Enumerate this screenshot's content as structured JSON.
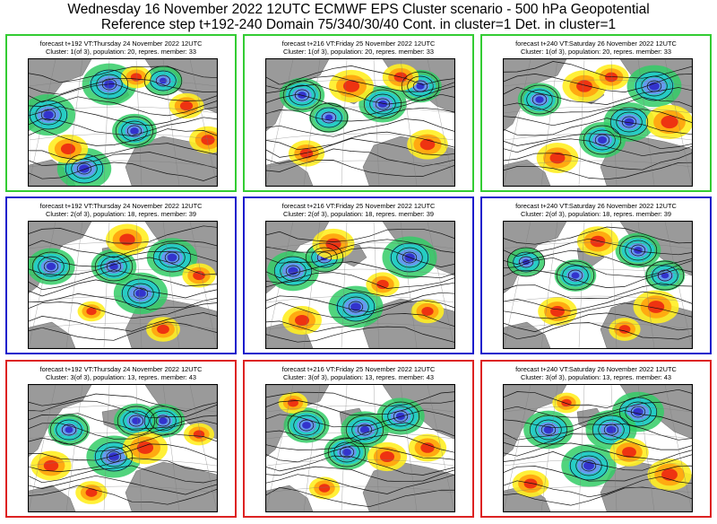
{
  "title": "Wednesday 16 November 2022 12UTC ECMWF EPS Cluster scenario - 500 hPa Geopotential",
  "subtitle": "Reference step t+192-240 Domain 75/340/30/40 Cont. in cluster=1 Det. in cluster=1",
  "colors": {
    "cluster1": "#33cc33",
    "cluster2": "#1a1acc",
    "cluster3": "#dd2222",
    "land": "#9a9a9a",
    "ocean": "#ffffff",
    "contour": "#111111"
  },
  "panels": [
    {
      "forecast": "forecast t+192 VT:Thursday 24 November 2022 12UTC",
      "cluster": "Cluster: 1(of 3), population: 20, repres. member: 33"
    },
    {
      "forecast": "forecast t+216 VT:Friday 25 November 2022 12UTC",
      "cluster": "Cluster: 1(of 3), population: 20, repres. member: 33"
    },
    {
      "forecast": "forecast t+240 VT:Saturday 26 November 2022 12UTC",
      "cluster": "Cluster: 1(of 3), population: 20, repres. member: 33"
    },
    {
      "forecast": "forecast t+192 VT:Thursday 24 November 2022 12UTC",
      "cluster": "Cluster: 2(of 3), population: 18, repres. member: 39"
    },
    {
      "forecast": "forecast t+216 VT:Friday 25 November 2022 12UTC",
      "cluster": "Cluster: 2(of 3), population: 18, repres. member: 39"
    },
    {
      "forecast": "forecast t+240 VT:Saturday 26 November 2022 12UTC",
      "cluster": "Cluster: 2(of 3), population: 18, repres. member: 39"
    },
    {
      "forecast": "forecast t+192 VT:Thursday 24 November 2022 12UTC",
      "cluster": "Cluster: 3(of 3), population: 13, repres. member: 43"
    },
    {
      "forecast": "forecast t+216 VT:Friday 25 November 2022 12UTC",
      "cluster": "Cluster: 3(of 3), population: 13, repres. member: 43"
    },
    {
      "forecast": "forecast t+240 VT:Saturday 26 November 2022 12UTC",
      "cluster": "Cluster: 3(of 3), population: 13, repres. member: 43"
    }
  ]
}
